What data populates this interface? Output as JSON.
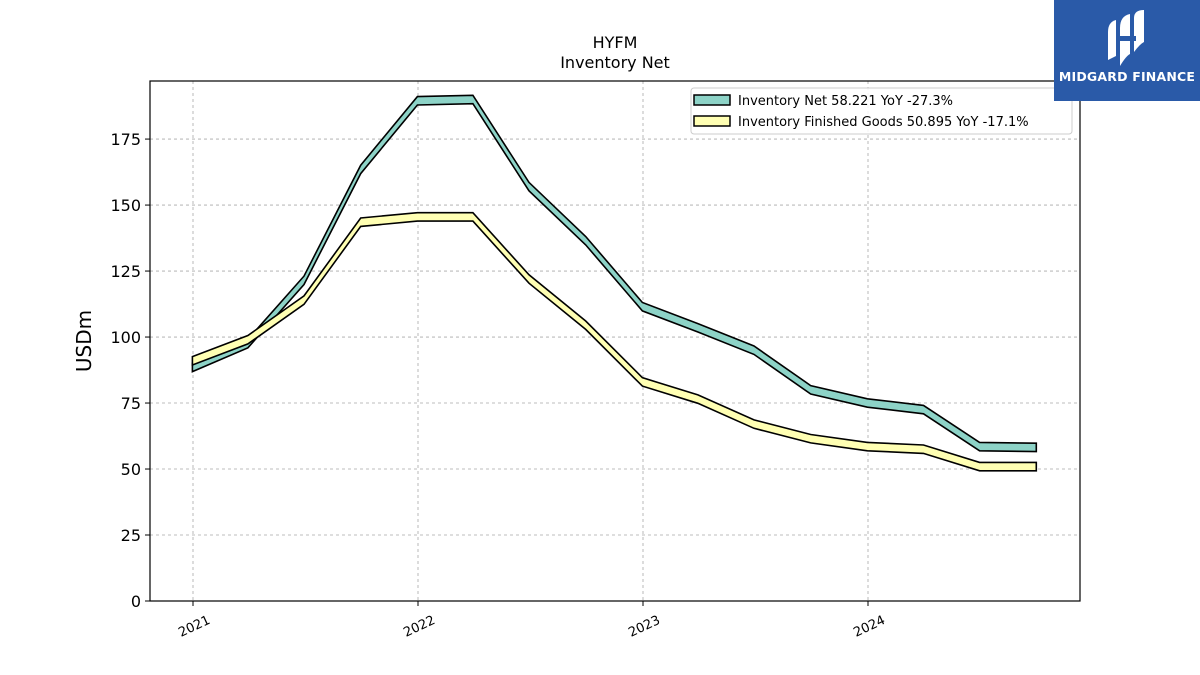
{
  "colors": {
    "series1_fill": "#8dd3c7",
    "series2_fill": "#ffffb3",
    "outline": "#000000",
    "logo_bg": "#2a5aa8"
  },
  "brand": {
    "name": "MIDGARD FINANCE"
  },
  "chart_data": {
    "type": "line",
    "title": "HYFM",
    "subtitle": "Inventory Net",
    "ylabel": "USDm",
    "xlabel": "",
    "ylim": [
      0,
      197
    ],
    "y_ticks": [
      0,
      25,
      50,
      75,
      100,
      125,
      150,
      175
    ],
    "x_ticks": [
      "2021",
      "2022",
      "2023",
      "2024"
    ],
    "grid": true,
    "legend_position": "top-right",
    "x": [
      "2020-12-31",
      "2021-03-31",
      "2021-06-30",
      "2021-09-30",
      "2021-12-31",
      "2022-03-31",
      "2022-06-30",
      "2022-09-30",
      "2022-12-31",
      "2023-03-31",
      "2023-06-30",
      "2023-09-30",
      "2023-12-31",
      "2024-03-31",
      "2024-06-30",
      "2024-09-30"
    ],
    "series": [
      {
        "name": "Inventory Net",
        "legend_label": "Inventory Net  58.221 YoY -27.3%",
        "values": [
          88.5,
          97.5,
          121.5,
          163.5,
          189.5,
          190.0,
          157.0,
          136.5,
          111.5,
          103.5,
          95.0,
          80.0,
          75.0,
          72.5,
          58.5,
          58.2
        ]
      },
      {
        "name": "Inventory Finished Goods",
        "legend_label": "Inventory Finished Goods  50.895 YoY -17.1%",
        "values": [
          91.0,
          99.0,
          114.0,
          143.5,
          145.5,
          145.5,
          122.0,
          104.5,
          83.0,
          76.5,
          67.0,
          61.5,
          58.5,
          57.5,
          50.9,
          50.9
        ]
      }
    ]
  }
}
